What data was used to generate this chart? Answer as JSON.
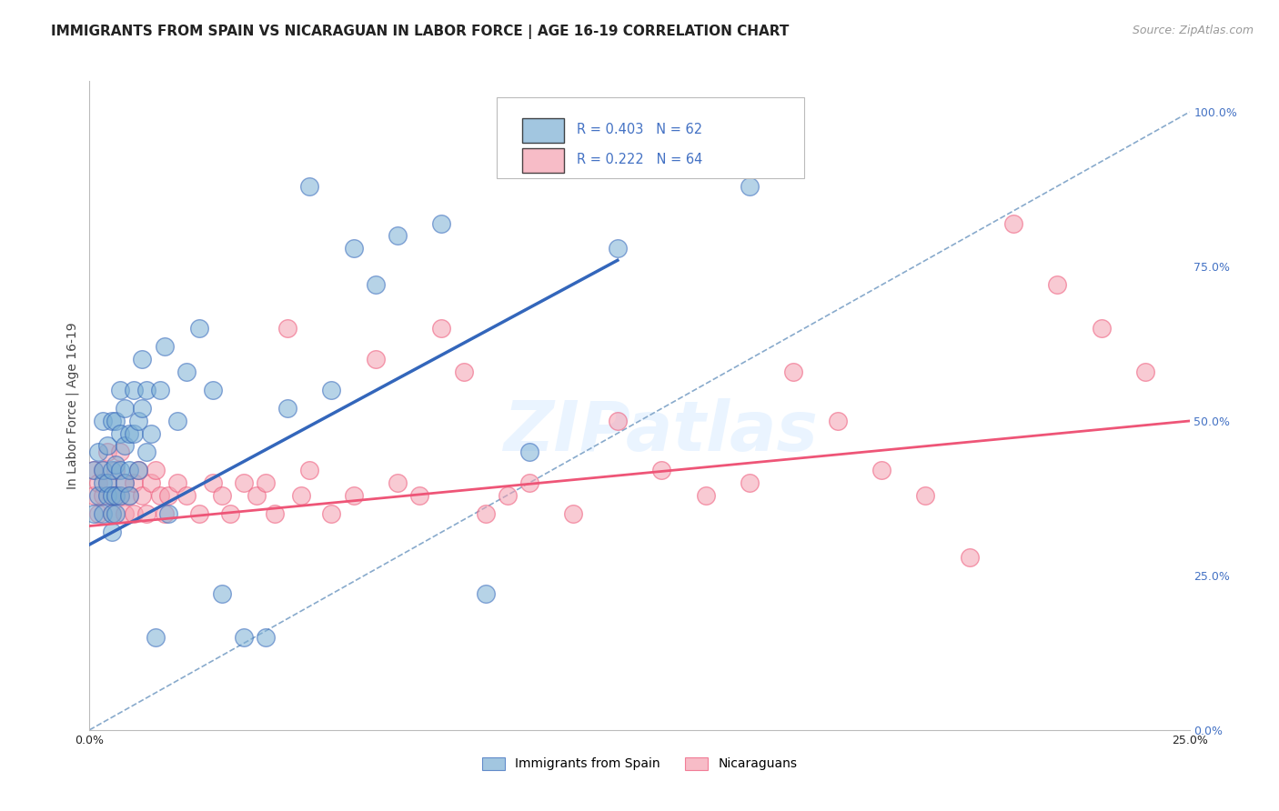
{
  "title": "IMMIGRANTS FROM SPAIN VS NICARAGUAN IN LABOR FORCE | AGE 16-19 CORRELATION CHART",
  "source": "Source: ZipAtlas.com",
  "ylabel_label": "In Labor Force | Age 16-19",
  "xlim": [
    0.0,
    0.25
  ],
  "ylim": [
    0.0,
    1.05
  ],
  "x_ticks": [
    0.0,
    0.05,
    0.1,
    0.15,
    0.2,
    0.25
  ],
  "y_ticks_right": [
    0.0,
    0.25,
    0.5,
    0.75,
    1.0
  ],
  "spain_color": "#7BAFD4",
  "nicaragua_color": "#F4A0B0",
  "spain_R": 0.403,
  "spain_N": 62,
  "nicaragua_R": 0.222,
  "nicaragua_N": 64,
  "legend_text_color": "#4472C4",
  "spain_line_color": "#3366BB",
  "nicaragua_line_color": "#EE5577",
  "diag_line_color": "#88AACC",
  "background_color": "#FFFFFF",
  "grid_color": "#CCCCCC",
  "title_fontsize": 11,
  "source_fontsize": 9,
  "axis_label_fontsize": 10,
  "tick_label_color_right": "#4472C4",
  "spain_scatter_x": [
    0.001,
    0.001,
    0.002,
    0.002,
    0.003,
    0.003,
    0.003,
    0.003,
    0.004,
    0.004,
    0.004,
    0.005,
    0.005,
    0.005,
    0.005,
    0.005,
    0.006,
    0.006,
    0.006,
    0.006,
    0.007,
    0.007,
    0.007,
    0.007,
    0.008,
    0.008,
    0.008,
    0.009,
    0.009,
    0.009,
    0.01,
    0.01,
    0.011,
    0.011,
    0.012,
    0.012,
    0.013,
    0.013,
    0.014,
    0.015,
    0.016,
    0.017,
    0.018,
    0.02,
    0.022,
    0.025,
    0.028,
    0.03,
    0.035,
    0.04,
    0.045,
    0.05,
    0.055,
    0.06,
    0.065,
    0.07,
    0.08,
    0.09,
    0.1,
    0.11,
    0.12,
    0.15
  ],
  "spain_scatter_y": [
    0.35,
    0.42,
    0.38,
    0.45,
    0.5,
    0.4,
    0.35,
    0.42,
    0.38,
    0.46,
    0.4,
    0.5,
    0.42,
    0.38,
    0.35,
    0.32,
    0.5,
    0.43,
    0.38,
    0.35,
    0.55,
    0.48,
    0.42,
    0.38,
    0.52,
    0.46,
    0.4,
    0.48,
    0.42,
    0.38,
    0.55,
    0.48,
    0.5,
    0.42,
    0.6,
    0.52,
    0.55,
    0.45,
    0.48,
    0.15,
    0.55,
    0.62,
    0.35,
    0.5,
    0.58,
    0.65,
    0.55,
    0.22,
    0.15,
    0.15,
    0.52,
    0.88,
    0.55,
    0.78,
    0.72,
    0.8,
    0.82,
    0.22,
    0.45,
    0.97,
    0.78,
    0.88
  ],
  "nicaragua_scatter_x": [
    0.001,
    0.001,
    0.002,
    0.002,
    0.003,
    0.003,
    0.004,
    0.004,
    0.005,
    0.005,
    0.006,
    0.006,
    0.007,
    0.007,
    0.008,
    0.008,
    0.009,
    0.01,
    0.01,
    0.011,
    0.012,
    0.013,
    0.014,
    0.015,
    0.016,
    0.017,
    0.018,
    0.02,
    0.022,
    0.025,
    0.028,
    0.03,
    0.032,
    0.035,
    0.038,
    0.04,
    0.042,
    0.045,
    0.048,
    0.05,
    0.055,
    0.06,
    0.065,
    0.07,
    0.075,
    0.08,
    0.085,
    0.09,
    0.095,
    0.1,
    0.11,
    0.12,
    0.13,
    0.14,
    0.15,
    0.16,
    0.17,
    0.18,
    0.19,
    0.2,
    0.21,
    0.22,
    0.23,
    0.24
  ],
  "nicaragua_scatter_y": [
    0.38,
    0.42,
    0.35,
    0.4,
    0.42,
    0.38,
    0.45,
    0.4,
    0.38,
    0.35,
    0.42,
    0.38,
    0.45,
    0.38,
    0.35,
    0.4,
    0.38,
    0.4,
    0.35,
    0.42,
    0.38,
    0.35,
    0.4,
    0.42,
    0.38,
    0.35,
    0.38,
    0.4,
    0.38,
    0.35,
    0.4,
    0.38,
    0.35,
    0.4,
    0.38,
    0.4,
    0.35,
    0.65,
    0.38,
    0.42,
    0.35,
    0.38,
    0.6,
    0.4,
    0.38,
    0.65,
    0.58,
    0.35,
    0.38,
    0.4,
    0.35,
    0.5,
    0.42,
    0.38,
    0.4,
    0.58,
    0.5,
    0.42,
    0.38,
    0.28,
    0.82,
    0.72,
    0.65,
    0.58
  ]
}
